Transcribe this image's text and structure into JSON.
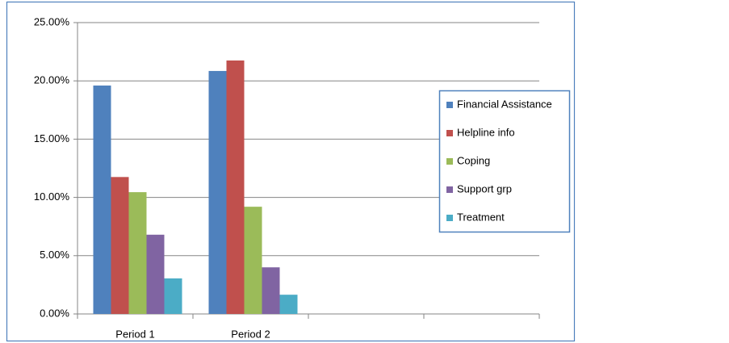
{
  "chart_data": {
    "type": "bar",
    "categories": [
      "Period 1",
      "Period 2",
      null,
      null
    ],
    "series": [
      {
        "name": "Financial Assistance",
        "color": "#4f81bd",
        "values": [
          19.6,
          20.85,
          null,
          null
        ]
      },
      {
        "name": "Helpline info",
        "color": "#c0504d",
        "values": [
          11.75,
          21.75,
          null,
          null
        ]
      },
      {
        "name": "Coping",
        "color": "#9bbb59",
        "values": [
          10.45,
          9.2,
          null,
          null
        ]
      },
      {
        "name": "Support grp",
        "color": "#8064a2",
        "values": [
          6.8,
          4.0,
          null,
          null
        ]
      },
      {
        "name": "Treatment",
        "color": "#4bacc6",
        "values": [
          3.05,
          1.65,
          null,
          null
        ]
      }
    ],
    "ylim": [
      0,
      25
    ],
    "yticks": [
      {
        "value": 0,
        "label": "0.00%"
      },
      {
        "value": 5,
        "label": "5.00%"
      },
      {
        "value": 10,
        "label": "10.00%"
      },
      {
        "value": 15,
        "label": "15.00%"
      },
      {
        "value": 20,
        "label": "20.00%"
      },
      {
        "value": 25,
        "label": "25.00%"
      }
    ],
    "grid": true,
    "legend": "right"
  }
}
